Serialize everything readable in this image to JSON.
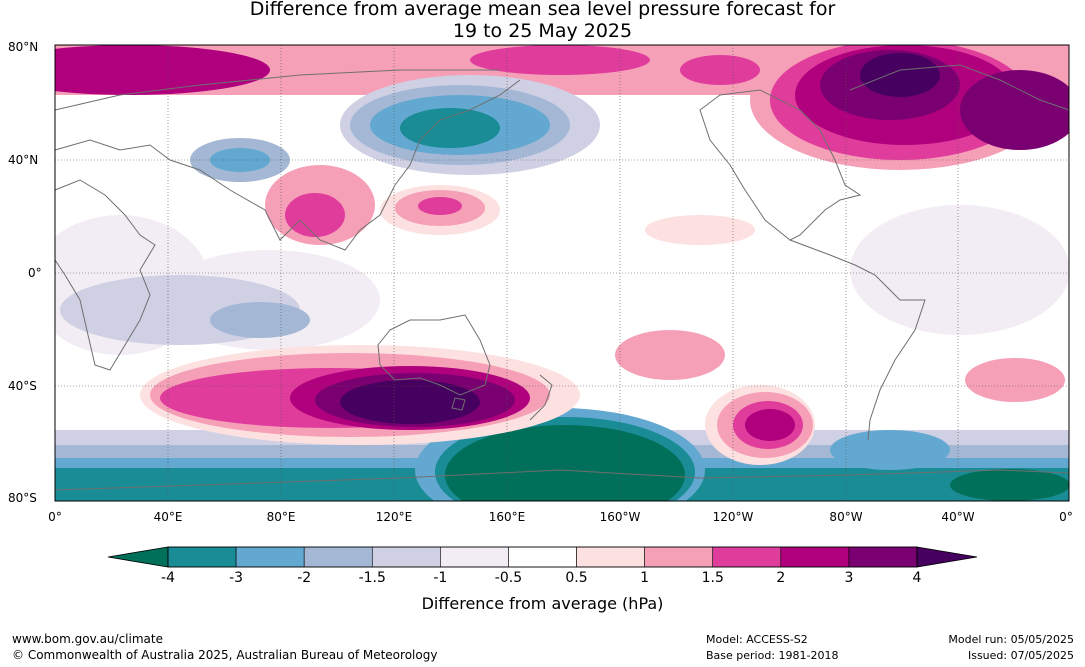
{
  "title_line1": "Difference from average mean sea level pressure forecast for",
  "title_line2": "19 to 25 May 2025",
  "lat_labels": [
    "80°N",
    "40°N",
    "0°",
    "40°S",
    "80°S"
  ],
  "lon_labels": [
    "0°",
    "40°E",
    "80°E",
    "120°E",
    "160°E",
    "160°W",
    "120°W",
    "80°W",
    "40°W",
    "0°"
  ],
  "colorbar": {
    "ticks": [
      "-4",
      "-3",
      "-2",
      "-1.5",
      "-1",
      "-0.5",
      "0.5",
      "1",
      "1.5",
      "2",
      "3",
      "4"
    ],
    "colors": [
      "#00705a",
      "#1a8c96",
      "#62a8d0",
      "#a4b8d6",
      "#cfd0e4",
      "#f2ecf4",
      "#ffffff",
      "#fde0e0",
      "#f6a0b8",
      "#e03c9c",
      "#b0007e",
      "#7a0072",
      "#460060"
    ],
    "label": "Difference from average (hPa)"
  },
  "footer": {
    "url": "www.bom.gov.au/climate",
    "copyright": "© Commonwealth of Australia 2025, Australian Bureau of Meteorology",
    "model": "Model: ACCESS-S2",
    "base_period": "Base period: 1981-2018",
    "model_run": "Model run: 05/05/2025",
    "issued": "Issued: 07/05/2025"
  }
}
